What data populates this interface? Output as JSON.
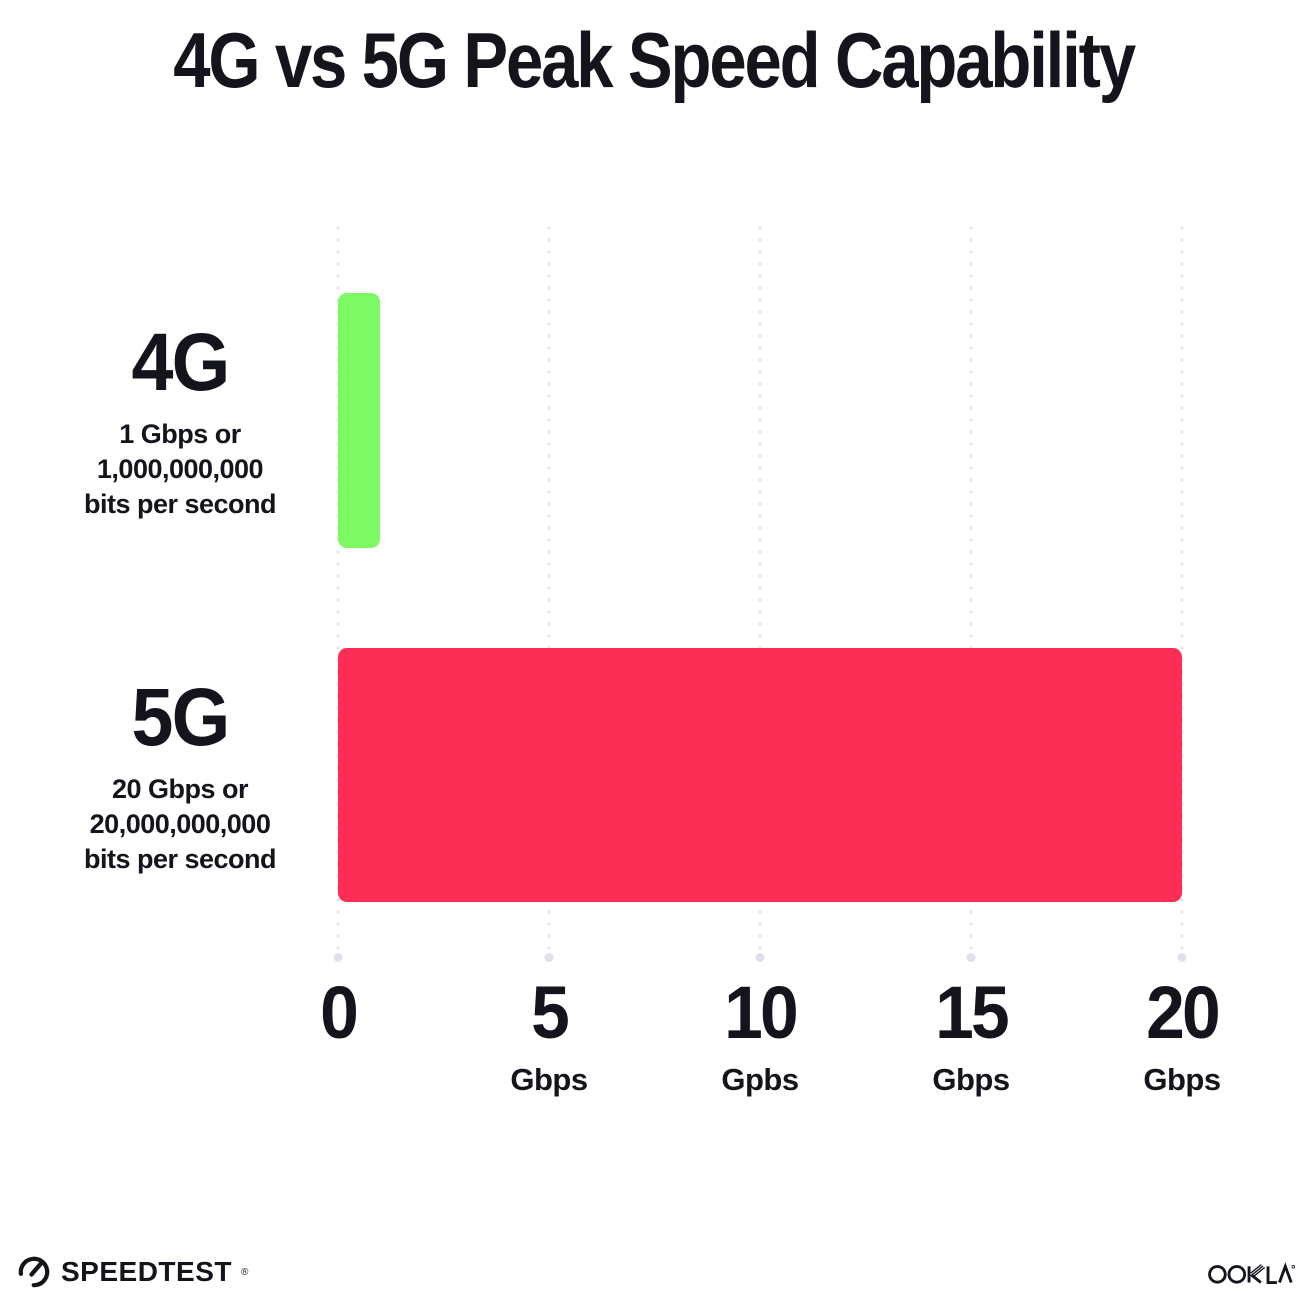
{
  "title": "4G vs 5G Peak Speed Capability",
  "chart_data": {
    "type": "bar",
    "orientation": "horizontal",
    "title": "4G vs 5G Peak Speed Capability",
    "categories": [
      "4G",
      "5G"
    ],
    "values": [
      1,
      20
    ],
    "value_unit": "Gbps",
    "category_descriptions": [
      "1 Gbps or 1,000,000,000 bits per second",
      "20 Gbps or 20,000,000,000 bits per second"
    ],
    "bar_colors": [
      "#7DFA63",
      "#FD2E55"
    ],
    "xlim": [
      0,
      20
    ],
    "x_ticks": [
      0,
      5,
      10,
      15,
      20
    ],
    "x_tick_units": [
      "",
      "Gbps",
      "Gpbs",
      "Gbps",
      "Gbps"
    ],
    "grid": "vertical-dotted",
    "legend": "none"
  },
  "rows": [
    {
      "label": "4G",
      "desc_line1": "1 Gbps or",
      "desc_line2": "1,000,000,000",
      "desc_line3": "bits per second",
      "value": 1,
      "color": "#7DFA63"
    },
    {
      "label": "5G",
      "desc_line1": "20 Gbps or",
      "desc_line2": "20,000,000,000",
      "desc_line3": "bits per second",
      "value": 20,
      "color": "#FD2E55"
    }
  ],
  "axis": {
    "ticks": [
      {
        "value": "0",
        "unit": ""
      },
      {
        "value": "5",
        "unit": "Gbps"
      },
      {
        "value": "10",
        "unit": "Gpbs"
      },
      {
        "value": "15",
        "unit": "Gbps"
      },
      {
        "value": "20",
        "unit": "Gbps"
      }
    ]
  },
  "footer": {
    "speedtest_label": "SPEEDTEST",
    "speedtest_trademark": "®",
    "ookla_label": "OOKLA"
  },
  "colors": {
    "background": "#FFFFFF",
    "text": "#13141C",
    "bar_4g": "#7DFA63",
    "bar_5g": "#FD2E55",
    "gridline_dot": "#E2E4F0"
  }
}
